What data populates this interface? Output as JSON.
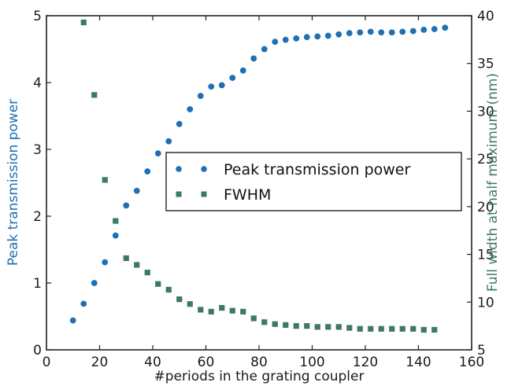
{
  "chart_data": {
    "type": "scatter",
    "xlabel": "#periods in the grating coupler",
    "ylabel_left": "Peak transmission power",
    "ylabel_right": "Full width at half maximum (nm)",
    "xlim": [
      0,
      160
    ],
    "ylim_left": [
      0,
      5
    ],
    "ylim_right": [
      5,
      40
    ],
    "x_ticks": [
      0,
      20,
      40,
      60,
      80,
      100,
      120,
      140,
      160
    ],
    "y_left_ticks": [
      0,
      1,
      2,
      3,
      4,
      5
    ],
    "y_right_ticks": [
      5,
      10,
      15,
      20,
      25,
      30,
      35,
      40
    ],
    "grid": false,
    "legend_position": "center-right",
    "series": [
      {
        "name": "Peak transmission power",
        "axis": "left",
        "marker": "circle",
        "color": "#1f6fb2",
        "x": [
          10,
          14,
          18,
          22,
          26,
          30,
          34,
          38,
          42,
          46,
          50,
          54,
          58,
          62,
          66,
          70,
          74,
          78,
          82,
          86,
          90,
          94,
          98,
          102,
          106,
          110,
          114,
          118,
          122,
          126,
          130,
          134,
          138,
          142,
          146,
          150
        ],
        "y": [
          0.44,
          0.69,
          1.0,
          1.31,
          1.71,
          2.16,
          2.38,
          2.67,
          2.94,
          3.12,
          3.38,
          3.6,
          3.8,
          3.94,
          3.96,
          4.07,
          4.18,
          4.36,
          4.5,
          4.61,
          4.64,
          4.66,
          4.68,
          4.69,
          4.7,
          4.72,
          4.74,
          4.75,
          4.76,
          4.75,
          4.75,
          4.76,
          4.77,
          4.79,
          4.8,
          4.82
        ]
      },
      {
        "name": "FWHM",
        "axis": "right",
        "marker": "square",
        "color": "#3d7a60",
        "x": [
          14,
          18,
          22,
          26,
          30,
          34,
          38,
          42,
          46,
          50,
          54,
          58,
          62,
          66,
          70,
          74,
          78,
          82,
          86,
          90,
          94,
          98,
          102,
          106,
          110,
          114,
          118,
          122,
          126,
          130,
          134,
          138,
          142,
          146
        ],
        "y": [
          39.3,
          31.7,
          22.8,
          18.5,
          14.6,
          13.9,
          13.1,
          11.9,
          11.3,
          10.3,
          9.8,
          9.2,
          9.0,
          9.4,
          9.1,
          9.0,
          8.3,
          7.9,
          7.7,
          7.6,
          7.5,
          7.5,
          7.4,
          7.4,
          7.4,
          7.3,
          7.2,
          7.2,
          7.2,
          7.2,
          7.2,
          7.2,
          7.1,
          7.1
        ]
      }
    ]
  }
}
